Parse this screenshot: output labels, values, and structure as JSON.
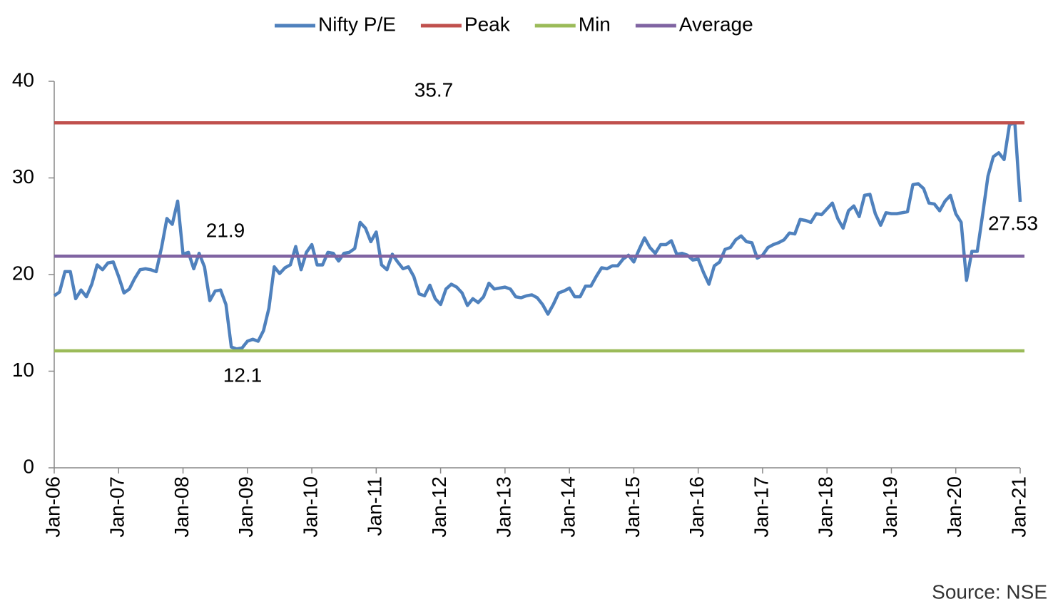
{
  "chart_data": {
    "type": "line",
    "source": "Source: NSE",
    "categories": [
      "Jan-06",
      null,
      null,
      null,
      null,
      null,
      null,
      null,
      null,
      null,
      null,
      null,
      "Jan-07",
      null,
      null,
      null,
      null,
      null,
      null,
      null,
      null,
      null,
      null,
      null,
      "Jan-08",
      null,
      null,
      null,
      null,
      null,
      null,
      null,
      null,
      null,
      null,
      null,
      "Jan-09",
      null,
      null,
      null,
      null,
      null,
      null,
      null,
      null,
      null,
      null,
      null,
      "Jan-10",
      null,
      null,
      null,
      null,
      null,
      null,
      null,
      null,
      null,
      null,
      null,
      "Jan-11",
      null,
      null,
      null,
      null,
      null,
      null,
      null,
      null,
      null,
      null,
      null,
      "Jan-12",
      null,
      null,
      null,
      null,
      null,
      null,
      null,
      null,
      null,
      null,
      null,
      "Jan-13",
      null,
      null,
      null,
      null,
      null,
      null,
      null,
      null,
      null,
      null,
      null,
      "Jan-14",
      null,
      null,
      null,
      null,
      null,
      null,
      null,
      null,
      null,
      null,
      null,
      "Jan-15",
      null,
      null,
      null,
      null,
      null,
      null,
      null,
      null,
      null,
      null,
      null,
      "Jan-16",
      null,
      null,
      null,
      null,
      null,
      null,
      null,
      null,
      null,
      null,
      null,
      "Jan-17",
      null,
      null,
      null,
      null,
      null,
      null,
      null,
      null,
      null,
      null,
      null,
      "Jan-18",
      null,
      null,
      null,
      null,
      null,
      null,
      null,
      null,
      null,
      null,
      null,
      "Jan-19",
      null,
      null,
      null,
      null,
      null,
      null,
      null,
      null,
      null,
      null,
      null,
      "Jan-20",
      null,
      null,
      null,
      null,
      null,
      null,
      null,
      null,
      null,
      null,
      null,
      "Jan-21"
    ],
    "series": [
      {
        "name": "Nifty P/E",
        "color": "#4f81bd",
        "values": [
          17.8,
          18.2,
          20.3,
          20.3,
          17.5,
          18.4,
          17.7,
          19.0,
          21.0,
          20.5,
          21.2,
          21.3,
          19.8,
          18.1,
          18.5,
          19.6,
          20.5,
          20.6,
          20.5,
          20.3,
          22.8,
          25.8,
          25.2,
          27.6,
          22.1,
          22.3,
          20.6,
          22.2,
          20.8,
          17.3,
          18.3,
          18.4,
          16.9,
          12.5,
          12.3,
          12.4,
          13.1,
          13.3,
          13.1,
          14.2,
          16.5,
          20.8,
          20.1,
          20.7,
          21.0,
          22.9,
          20.5,
          22.3,
          23.1,
          21.0,
          21.0,
          22.3,
          22.2,
          21.4,
          22.2,
          22.3,
          22.7,
          25.4,
          24.8,
          23.4,
          24.4,
          21.0,
          20.5,
          22.1,
          21.3,
          20.6,
          20.8,
          19.8,
          18.0,
          17.8,
          18.9,
          17.5,
          16.9,
          18.5,
          19.0,
          18.7,
          18.1,
          16.8,
          17.5,
          17.1,
          17.7,
          19.1,
          18.5,
          18.6,
          18.7,
          18.5,
          17.7,
          17.6,
          17.8,
          17.9,
          17.6,
          16.9,
          15.9,
          16.9,
          18.1,
          18.3,
          18.6,
          17.7,
          17.7,
          18.8,
          18.8,
          19.8,
          20.7,
          20.6,
          20.9,
          20.9,
          21.6,
          22.0,
          21.3,
          22.6,
          23.8,
          22.8,
          22.2,
          23.1,
          23.1,
          23.5,
          22.1,
          22.2,
          22.0,
          21.5,
          21.6,
          20.2,
          19.0,
          20.9,
          21.3,
          22.6,
          22.8,
          23.6,
          24.0,
          23.4,
          23.3,
          21.7,
          22.0,
          22.8,
          23.1,
          23.3,
          23.6,
          24.3,
          24.2,
          25.7,
          25.6,
          25.4,
          26.3,
          26.2,
          26.8,
          27.4,
          25.8,
          24.8,
          26.6,
          27.1,
          26.0,
          28.2,
          28.3,
          26.3,
          25.1,
          26.4,
          26.3,
          26.3,
          26.4,
          26.5,
          29.3,
          29.4,
          28.9,
          27.4,
          27.3,
          26.6,
          27.6,
          28.2,
          26.3,
          25.4,
          19.4,
          22.4,
          22.4,
          26.2,
          30.2,
          32.2,
          32.6,
          31.9,
          35.5,
          35.7,
          27.53
        ]
      },
      {
        "name": "Peak",
        "color": "#c0504d",
        "value": 35.7
      },
      {
        "name": "Min",
        "color": "#9bbb59",
        "value": 12.1
      },
      {
        "name": "Average",
        "color": "#8064a2",
        "value": 21.9
      }
    ],
    "ylim": [
      0,
      40
    ],
    "yticks": [
      0,
      10,
      20,
      30,
      40
    ],
    "legend": "top"
  }
}
